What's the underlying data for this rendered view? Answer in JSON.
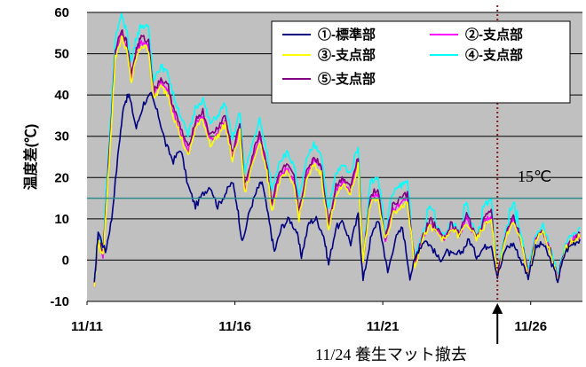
{
  "chart_data": {
    "type": "line",
    "ylabel": "温度差(℃)",
    "ylim": [
      -10,
      60
    ],
    "yticks": [
      "-10",
      "0",
      "10",
      "20",
      "30",
      "40",
      "50",
      "60"
    ],
    "xlim": [
      "11/11",
      "11/27T18:00"
    ],
    "xticks": [
      {
        "date": "11/11",
        "label": "11/11"
      },
      {
        "date": "11/16",
        "label": "11/16"
      },
      {
        "date": "11/21",
        "label": "11/21"
      },
      {
        "date": "11/26",
        "label": "11/26"
      }
    ],
    "grid": true,
    "legend_position": "top-right",
    "reference_line": {
      "y": 15,
      "label": "15℃",
      "color": "#2e8b8b"
    },
    "event_marker": {
      "date": "11/24T21:00",
      "label": "11/24 養生マット撤去",
      "color": "#8b1a1a"
    },
    "series": [
      {
        "name": "①-標準部",
        "color": "#000080",
        "points": [
          [
            "11/11T06:00",
            -6
          ],
          [
            "11/11T09:00",
            7
          ],
          [
            "11/11T15:00",
            2
          ],
          [
            "11/11T20:00",
            10
          ],
          [
            "11/12T02:00",
            28
          ],
          [
            "11/12T06:00",
            38
          ],
          [
            "11/12T10:00",
            40
          ],
          [
            "11/12T16:00",
            32
          ],
          [
            "11/12T22:00",
            38
          ],
          [
            "11/13T04:00",
            40
          ],
          [
            "11/13T10:00",
            35
          ],
          [
            "11/13T16:00",
            28
          ],
          [
            "11/13T22:00",
            24
          ],
          [
            "11/14T04:00",
            27
          ],
          [
            "11/14T10:00",
            18
          ],
          [
            "11/14T16:00",
            13
          ],
          [
            "11/14T22:00",
            16
          ],
          [
            "11/15T04:00",
            18
          ],
          [
            "11/15T10:00",
            13
          ],
          [
            "11/15T16:00",
            16
          ],
          [
            "11/15T22:00",
            19
          ],
          [
            "11/16T02:00",
            13
          ],
          [
            "11/16T06:00",
            4
          ],
          [
            "11/16T12:00",
            12
          ],
          [
            "11/16T18:00",
            17
          ],
          [
            "11/16T22:00",
            19
          ],
          [
            "11/17T04:00",
            9
          ],
          [
            "11/17T08:00",
            2
          ],
          [
            "11/17T14:00",
            8
          ],
          [
            "11/17T20:00",
            10
          ],
          [
            "11/18T02:00",
            7
          ],
          [
            "11/18T06:00",
            1
          ],
          [
            "11/18T12:00",
            9
          ],
          [
            "11/18T18:00",
            10
          ],
          [
            "11/19T00:00",
            6
          ],
          [
            "11/19T04:00",
            -1
          ],
          [
            "11/19T10:00",
            8
          ],
          [
            "11/19T16:00",
            9
          ],
          [
            "11/19T22:00",
            4
          ],
          [
            "11/20T04:00",
            11
          ],
          [
            "11/20T08:00",
            -5
          ],
          [
            "11/20T14:00",
            5
          ],
          [
            "11/20T20:00",
            10
          ],
          [
            "11/21T00:00",
            4
          ],
          [
            "11/21T04:00",
            -3
          ],
          [
            "11/21T10:00",
            5
          ],
          [
            "11/21T16:00",
            8
          ],
          [
            "11/21T22:00",
            -4
          ],
          [
            "11/22T04:00",
            2
          ],
          [
            "11/22T10:00",
            5
          ],
          [
            "11/22T16:00",
            3
          ],
          [
            "11/22T22:00",
            0
          ],
          [
            "11/23T04:00",
            2
          ],
          [
            "11/23T10:00",
            1
          ],
          [
            "11/23T16:00",
            2
          ],
          [
            "11/23T22:00",
            5
          ],
          [
            "11/24T04:00",
            1
          ],
          [
            "11/24T10:00",
            3
          ],
          [
            "11/24T16:00",
            4
          ],
          [
            "11/24T21:00",
            -4
          ],
          [
            "11/25T04:00",
            3
          ],
          [
            "11/25T10:00",
            4
          ],
          [
            "11/25T16:00",
            0
          ],
          [
            "11/25T22:00",
            -4
          ],
          [
            "11/26T04:00",
            3
          ],
          [
            "11/26T10:00",
            4
          ],
          [
            "11/26T16:00",
            0
          ],
          [
            "11/26T22:00",
            -5
          ],
          [
            "11/27T04:00",
            2
          ],
          [
            "11/27T10:00",
            4
          ],
          [
            "11/27T16:00",
            5
          ]
        ]
      },
      {
        "name": "②-支点部",
        "color": "#ff00ff",
        "offset": 2,
        "points": [
          [
            "11/11T06:00",
            -6
          ],
          [
            "11/11T09:00",
            5
          ],
          [
            "11/11T13:00",
            1
          ],
          [
            "11/11T18:00",
            25
          ],
          [
            "11/11T23:00",
            50
          ],
          [
            "11/12T04:00",
            55
          ],
          [
            "11/12T08:00",
            52
          ],
          [
            "11/12T12:00",
            44
          ],
          [
            "11/12T16:00",
            50
          ],
          [
            "11/12T20:00",
            53
          ],
          [
            "11/13T02:00",
            52
          ],
          [
            "11/13T06:00",
            40
          ],
          [
            "11/13T12:00",
            43
          ],
          [
            "11/13T18:00",
            41
          ],
          [
            "11/13T22:00",
            36
          ],
          [
            "11/14T04:00",
            31
          ],
          [
            "11/14T10:00",
            26
          ],
          [
            "11/14T16:00",
            33
          ],
          [
            "11/14T22:00",
            35
          ],
          [
            "11/15T04:00",
            29
          ],
          [
            "11/15T10:00",
            31
          ],
          [
            "11/15T16:00",
            34
          ],
          [
            "11/15T22:00",
            25
          ],
          [
            "11/16T04:00",
            32
          ],
          [
            "11/16T08:00",
            17
          ],
          [
            "11/16T14:00",
            24
          ],
          [
            "11/16T20:00",
            30
          ],
          [
            "11/17T02:00",
            22
          ],
          [
            "11/17T06:00",
            13
          ],
          [
            "11/17T12:00",
            20
          ],
          [
            "11/17T18:00",
            22
          ],
          [
            "11/18T00:00",
            19
          ],
          [
            "11/18T04:00",
            11
          ],
          [
            "11/18T10:00",
            20
          ],
          [
            "11/18T16:00",
            24
          ],
          [
            "11/18T22:00",
            22
          ],
          [
            "11/19T04:00",
            8
          ],
          [
            "11/19T10:00",
            17
          ],
          [
            "11/19T16:00",
            19
          ],
          [
            "11/19T22:00",
            17
          ],
          [
            "11/20T04:00",
            24
          ],
          [
            "11/20T08:00",
            0
          ],
          [
            "11/20T14:00",
            15
          ],
          [
            "11/20T20:00",
            16
          ],
          [
            "11/21T02:00",
            5
          ],
          [
            "11/21T08:00",
            12
          ],
          [
            "11/21T14:00",
            14
          ],
          [
            "11/21T20:00",
            15
          ],
          [
            "11/22T02:00",
            -1
          ],
          [
            "11/22T08:00",
            5
          ],
          [
            "11/22T14:00",
            9
          ],
          [
            "11/22T20:00",
            7
          ],
          [
            "11/23T02:00",
            5
          ],
          [
            "11/23T08:00",
            8
          ],
          [
            "11/23T14:00",
            6
          ],
          [
            "11/23T20:00",
            10
          ],
          [
            "11/24T04:00",
            5
          ],
          [
            "11/24T10:00",
            9
          ],
          [
            "11/24T16:00",
            11
          ],
          [
            "11/24T21:00",
            -4
          ],
          [
            "11/25T04:00",
            6
          ],
          [
            "11/25T10:00",
            10
          ],
          [
            "11/25T16:00",
            5
          ],
          [
            "11/25T22:00",
            -4
          ],
          [
            "11/26T04:00",
            5
          ],
          [
            "11/26T10:00",
            7
          ],
          [
            "11/26T16:00",
            2
          ],
          [
            "11/26T22:00",
            -5
          ],
          [
            "11/27T04:00",
            3
          ],
          [
            "11/27T10:00",
            5
          ],
          [
            "11/27T16:00",
            6
          ]
        ]
      },
      {
        "name": "③-支点部",
        "color": "#ffff00",
        "offset": -1,
        "ref": 1
      },
      {
        "name": "④-支点部",
        "color": "#00ffff",
        "offset": 4,
        "ref": 1
      },
      {
        "name": "⑤-支点部",
        "color": "#800080",
        "offset": 1,
        "ref": 1
      }
    ]
  }
}
